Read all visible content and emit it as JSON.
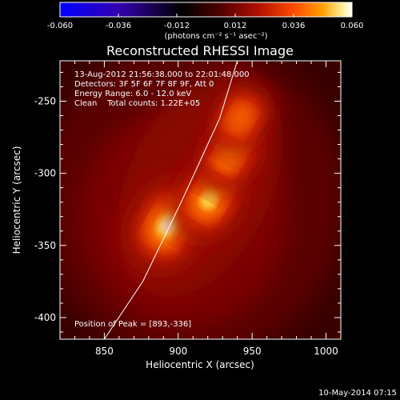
{
  "chart_data": {
    "type": "heatmap",
    "title": "Reconstructed RHESSI Image",
    "xlabel": "Heliocentric X (arcsec)",
    "ylabel": "Heliocentric Y (arcsec)",
    "xlim": [
      820,
      1010
    ],
    "ylim": [
      -415,
      -222
    ],
    "x_ticks": [
      "850",
      "900",
      "950",
      "1000"
    ],
    "x_tick_values": [
      850,
      900,
      950,
      1000
    ],
    "y_ticks": [
      "-250",
      "-300",
      "-350",
      "-400"
    ],
    "y_tick_values": [
      -250,
      -300,
      -350,
      -400
    ],
    "colorbar": {
      "range": [
        -0.06,
        0.06
      ],
      "ticks": [
        "-0.060",
        "-0.036",
        "-0.012",
        "0.012",
        "0.036",
        "0.060"
      ],
      "tick_values": [
        -0.06,
        -0.036,
        -0.012,
        0.012,
        0.036,
        0.06
      ],
      "unit_label": "(photons cm⁻² s⁻¹ asec⁻²)"
    },
    "annotations": {
      "time_range": "13-Aug-2012 21:56:38.000 to 22:01:48.000",
      "detectors": "Detectors: 3F 5F 6F 7F 8F 9F, Att 0",
      "energy_range": "Energy Range: 6.0 - 12.0 keV",
      "clean_counts": "Clean    Total counts: 1.22E+05",
      "peak_position": "Position of Peak = [893,-336]"
    },
    "sources": [
      {
        "x": 893,
        "y": -336,
        "peak": 1.0
      },
      {
        "x": 921,
        "y": -318,
        "peak": 0.75
      },
      {
        "x": 935,
        "y": -287,
        "peak": 0.45
      },
      {
        "x": 942,
        "y": -262,
        "peak": 0.3
      }
    ],
    "limb_line": [
      [
        850,
        -415
      ],
      [
        876,
        -375
      ],
      [
        902,
        -320
      ],
      [
        928,
        -262
      ],
      [
        940,
        -222
      ]
    ],
    "colors": {
      "colorbar_stops": [
        "#0000ff",
        "#3300cc",
        "#000000",
        "#4a0000",
        "#a00000",
        "#ff3300",
        "#ff9a00",
        "#fff090",
        "#ffffff"
      ],
      "limb": "#ffffff"
    }
  },
  "footer": {
    "timestamp": "10-May-2014 07:15"
  }
}
